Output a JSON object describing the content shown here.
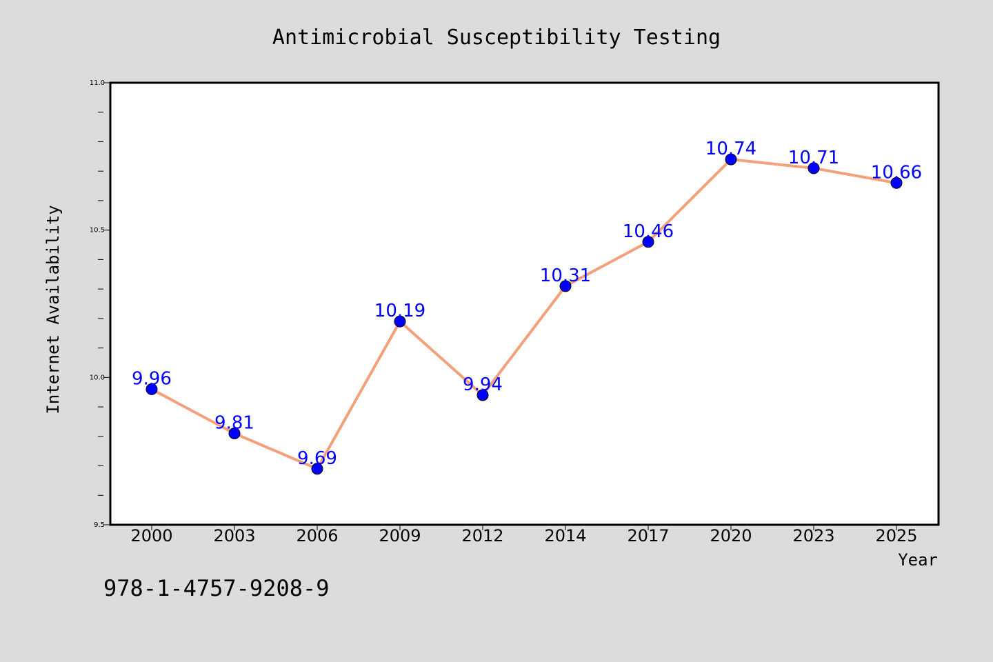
{
  "chart_data": {
    "type": "line",
    "title": "Antimicrobial Susceptibility Testing",
    "xlabel": "Year",
    "ylabel": "Internet Availability",
    "categories": [
      "2000",
      "2003",
      "2006",
      "2009",
      "2012",
      "2014",
      "2017",
      "2020",
      "2023",
      "2025"
    ],
    "series": [
      {
        "values": [
          9.96,
          9.81,
          9.69,
          10.19,
          9.94,
          10.31,
          10.46,
          10.74,
          10.71,
          10.66
        ],
        "labels": [
          "9.96",
          "9.81",
          "9.69",
          "10.19",
          "9.94",
          "10.31",
          "10.46",
          "10.74",
          "10.71",
          "10.66"
        ],
        "line_color": "#f4a07a",
        "marker_color": "#0000ff"
      }
    ],
    "ylim": [
      9.5,
      11.0
    ],
    "yticks": [
      "9.5",
      "10.0",
      "10.5",
      "11.0"
    ],
    "grid": false,
    "background_color": "#dcdcdc",
    "plot_background_color": "#ffffff"
  },
  "footer": {
    "isbn": "978-1-4757-9208-9"
  }
}
